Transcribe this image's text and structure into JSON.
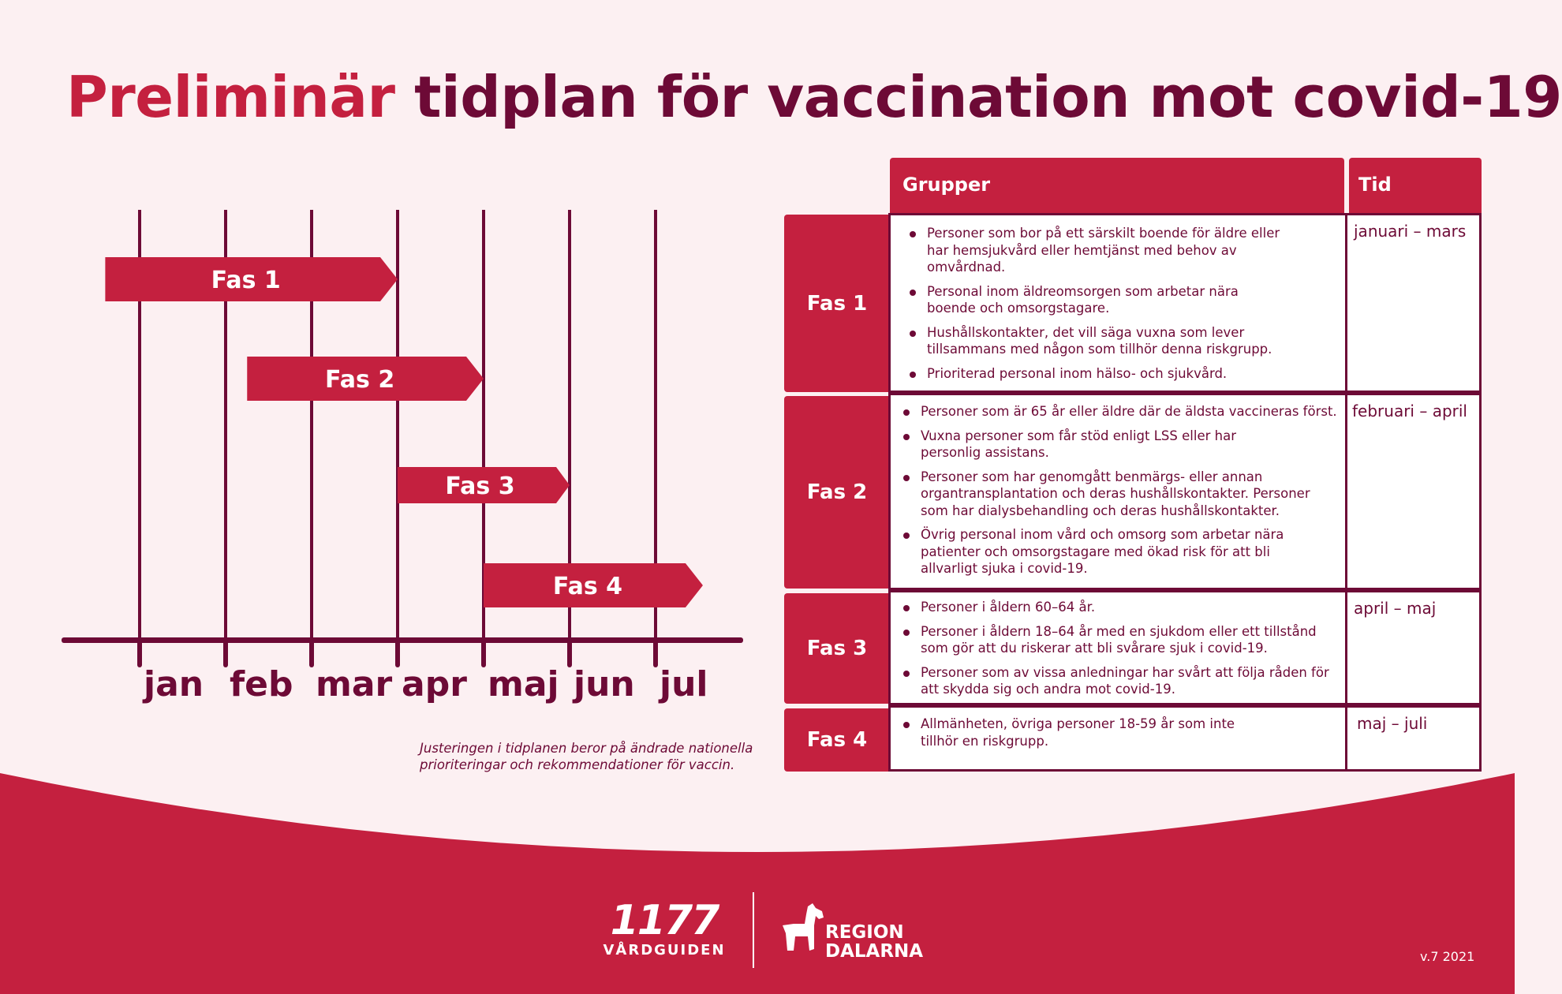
{
  "title": {
    "accent": "Preliminär",
    "rest": " tidplan för vaccination mot covid-19"
  },
  "timeline": {
    "months": [
      "jan",
      "feb",
      "mar",
      "apr",
      "maj",
      "jun",
      "jul"
    ],
    "phases": [
      {
        "label": "Fas 1",
        "start": -0.4,
        "end": 3.0
      },
      {
        "label": "Fas 2",
        "start": 1.25,
        "end": 4.0
      },
      {
        "label": "Fas 3",
        "start": 3.0,
        "end": 5.0
      },
      {
        "label": "Fas 4",
        "start": 4.0,
        "end": 6.55
      }
    ]
  },
  "footnote": "Justeringen i tidplanen beror på ändrade nationella prioriteringar och rekommendationer för vaccin.",
  "table": {
    "header_groups": "Grupper",
    "header_time": "Tid",
    "rows": [
      {
        "phase": "Fas 1",
        "time": "januari – mars",
        "groups": [
          "Personer som bor på ett särskilt boende för äldre eller har hemsjukvård eller hemtjänst med behov av omvårdnad.",
          "Personal inom äldreomsorgen som arbetar nära boende och omsorgstagare.",
          "Hushållskontakter, det vill säga vuxna som lever tillsammans med någon som tillhör denna riskgrupp.",
          "Prioriterad personal inom hälso- och sjukvård."
        ]
      },
      {
        "phase": "Fas 2",
        "time": "februari – april",
        "groups": [
          "Personer som är 65 år eller äldre där de äldsta vaccineras först.",
          "Vuxna personer som får stöd enligt LSS eller har personlig assistans.",
          "Personer som har genomgått benmärgs- eller annan organtransplantation och deras hushållskontakter. Personer som har dialysbehandling och deras hushållskontakter.",
          "Övrig personal inom vård och omsorg som arbetar nära patienter och omsorgstagare med ökad risk för att bli allvarligt sjuka i covid-19."
        ]
      },
      {
        "phase": "Fas 3",
        "time": "april – maj",
        "groups": [
          "Personer i åldern 60–64 år.",
          "Personer i åldern 18–64 år med en sjukdom eller ett tillstånd som gör att du riskerar att bli svårare sjuk i covid-19.",
          "Personer som av vissa anledningar har svårt att följa råden för att skydda sig och andra mot covid-19."
        ]
      },
      {
        "phase": "Fas 4",
        "time": "maj – juli",
        "groups": [
          "Allmänheten, övriga personer 18-59 år som inte tillhör en riskgrupp."
        ]
      }
    ]
  },
  "footer": {
    "logo_1177_number": "1177",
    "logo_1177_text": "VÅRDGUIDEN",
    "region_line1": "REGION",
    "region_line2": "DALARNA",
    "version": "v.7 2021"
  },
  "colors": {
    "accent_red": "#c4203f",
    "dark_wine": "#6d0a36",
    "background": "#fcf0f2"
  }
}
